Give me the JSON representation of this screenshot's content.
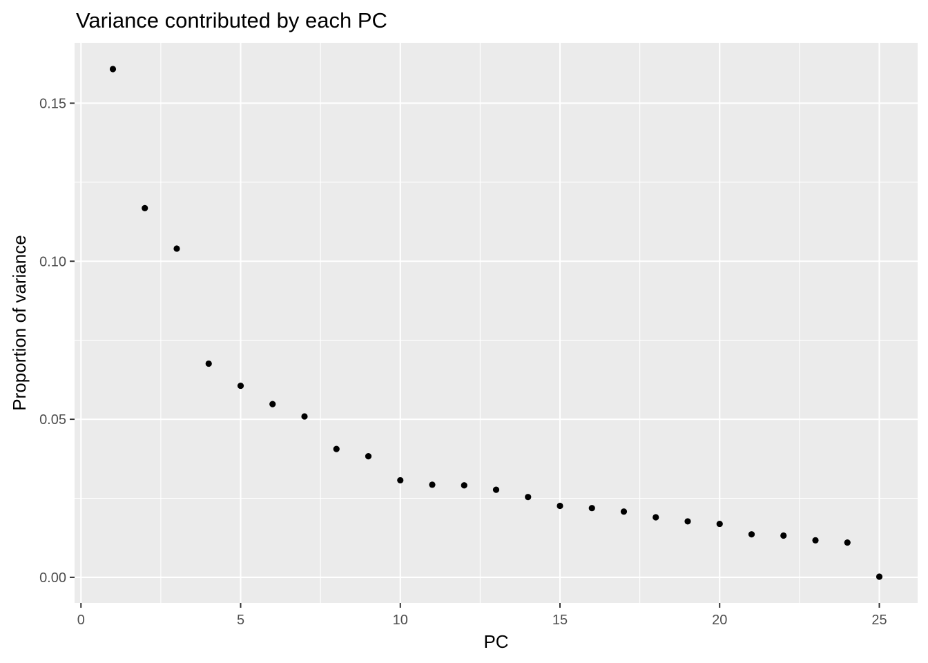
{
  "chart_data": {
    "type": "scatter",
    "title": "Variance contributed by each PC",
    "xlabel": "PC",
    "ylabel": "Proportion of variance",
    "x": [
      1,
      2,
      3,
      4,
      5,
      6,
      7,
      8,
      9,
      10,
      11,
      12,
      13,
      14,
      15,
      16,
      17,
      18,
      19,
      20,
      21,
      22,
      23,
      24,
      25
    ],
    "y": [
      0.1608,
      0.1168,
      0.104,
      0.0676,
      0.0606,
      0.0548,
      0.0509,
      0.0406,
      0.0383,
      0.0307,
      0.0293,
      0.0291,
      0.0277,
      0.0254,
      0.0226,
      0.0219,
      0.0208,
      0.019,
      0.0177,
      0.0169,
      0.0136,
      0.0132,
      0.0117,
      0.011,
      0.0002
    ],
    "xlim": [
      -0.2,
      26.2
    ],
    "ylim": [
      -0.0081,
      0.1691
    ],
    "x_ticks": [
      0,
      5,
      10,
      15,
      20,
      25
    ],
    "x_tick_labels": [
      "0",
      "5",
      "10",
      "15",
      "20",
      "25"
    ],
    "y_ticks": [
      0.0,
      0.05,
      0.1,
      0.15
    ],
    "y_tick_labels": [
      "0.00",
      "0.05",
      "0.10",
      "0.15"
    ],
    "grid": true,
    "panel_background": "#ebebeb",
    "grid_color": "#ffffff",
    "point_color": "#000000"
  }
}
